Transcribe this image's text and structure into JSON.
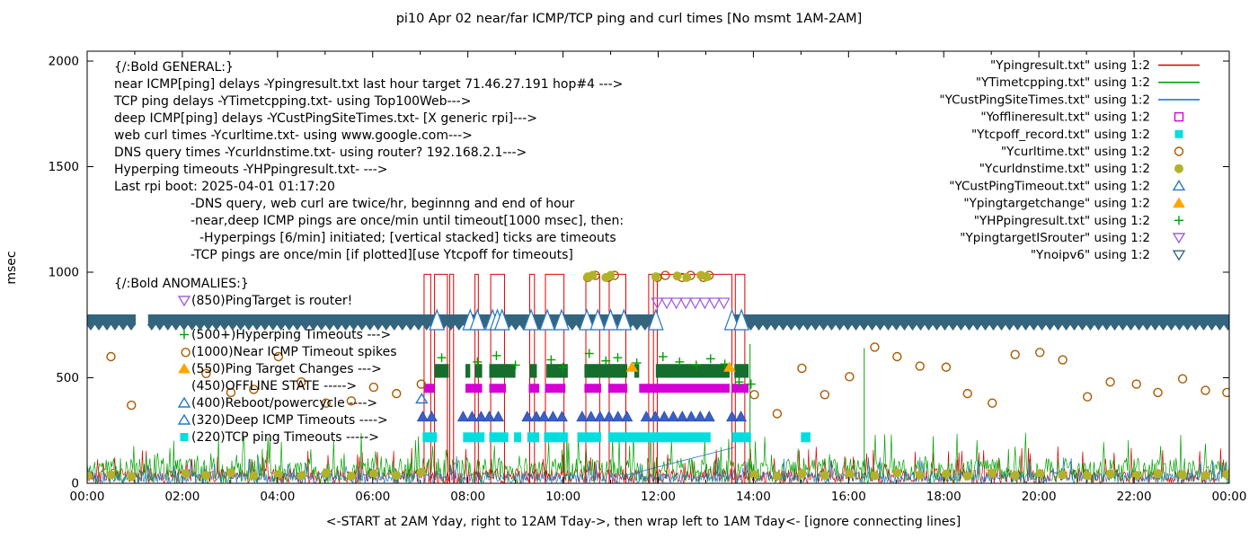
{
  "title": "pi10 Apr 02  near/far ICMP/TCP ping and curl times [No msmt 1AM-2AM]",
  "footer": "<-START at 2AM Yday, right to 12AM Tday->, then wrap left to 1AM Tday<- [ignore connecting lines]",
  "ylabel": "msec",
  "axes": {
    "x_ticks": [
      "00:00",
      "02:00",
      "04:00",
      "06:00",
      "08:00",
      "10:00",
      "12:00",
      "14:00",
      "16:00",
      "18:00",
      "20:00",
      "22:00",
      "00:00"
    ],
    "y_ticks": [
      0,
      500,
      1000,
      1500,
      2000
    ],
    "xlim_hours": [
      0,
      24
    ],
    "ylim_msec": [
      0,
      2045
    ]
  },
  "colors": {
    "red": "#dd0000",
    "green": "#00a000",
    "blue": "#2878c8",
    "magenta": "#d400d4",
    "cyan": "#00dede",
    "orange_brown": "#a85a00",
    "olive": "#b2b22a",
    "navy_band": "#34657f",
    "violet": "#a060e0",
    "orange": "#ffa500",
    "royal": "#3a5fc8",
    "dark_green": "#156e2d"
  },
  "legend": [
    {
      "label": "\"Ypingresult.txt\" using 1:2",
      "marker": "line",
      "color": "#dd0000"
    },
    {
      "label": "\"YTimetcpping.txt\" using 1:2",
      "marker": "line",
      "color": "#00a000"
    },
    {
      "label": "\"YCustPingSiteTimes.txt\" using 1:2",
      "marker": "line",
      "color": "#2878c8"
    },
    {
      "label": "\"Yofflineresult.txt\" using 1:2",
      "marker": "square-open",
      "color": "#d400d4"
    },
    {
      "label": "\"Ytcpoff_record.txt\" using 1:2",
      "marker": "square-filled",
      "color": "#00dede"
    },
    {
      "label": "\"Ycurltime.txt\" using 1:2",
      "marker": "circle-open",
      "color": "#a85a00"
    },
    {
      "label": "\"Ycurldnstime.txt\" using 1:2",
      "marker": "circle-filled",
      "color": "#b2b22a"
    },
    {
      "label": "\"YCustPingTimeout.txt\" using 1:2",
      "marker": "triangle-up-open",
      "color": "#2878c8"
    },
    {
      "label": "\"Ypingtargetchange\" using 1:2",
      "marker": "triangle-up-filled",
      "color": "#ffa500"
    },
    {
      "label": "\"YHPpingresult.txt\" using 1:2",
      "marker": "plus",
      "color": "#00a000"
    },
    {
      "label": "\"YpingtargetISrouter\" using 1:2",
      "marker": "triangle-down-open",
      "color": "#a060e0"
    },
    {
      "label": "\"Ynoipv6\" using 1:2",
      "marker": "triangle-down-open",
      "color": "#34657f"
    }
  ],
  "annotations": {
    "general": [
      {
        "text": "{/:Bold GENERAL:}",
        "indent": 0
      },
      {
        "text": "near ICMP[ping] delays -Ypingresult.txt last hour target 71.46.27.191 hop#4 --->",
        "indent": 0
      },
      {
        "text": "TCP ping delays -YTimetcpping.txt- using Top100Web--->",
        "indent": 0
      },
      {
        "text": "deep ICMP[ping] delays -YCustPingSiteTimes.txt- [X generic rpi]--->",
        "indent": 0
      },
      {
        "text": "web curl times -Ycurltime.txt- using www.google.com--->",
        "indent": 0
      },
      {
        "text": "DNS query times -Ycurldnstime.txt- using router? 192.168.2.1--->",
        "indent": 0
      },
      {
        "text": "Hyperping timeouts -YHPpingresult.txt- --->",
        "indent": 0
      },
      {
        "text": "Last rpi boot: 2025-04-01 01:17:20",
        "indent": 0
      },
      {
        "text": "-DNS query, web curl are twice/hr, beginnng and end of hour",
        "indent": 85
      },
      {
        "text": "-near,deep ICMP pings are once/min until timeout[1000 msec], then:",
        "indent": 85
      },
      {
        "text": "-Hyperpings [6/min] initiated; [vertical stacked] ticks are timeouts",
        "indent": 95
      },
      {
        "text": "-TCP pings are once/min [if plotted][use Ytcpoff for timeouts]",
        "indent": 85
      }
    ],
    "anomalies": [
      {
        "text": "{/:Bold ANOMALIES:}",
        "marker": null,
        "color": null,
        "header": true
      },
      {
        "text": "(850)PingTarget is router!",
        "marker": "triangle-down-open",
        "color": "#a060e0"
      },
      {
        "text": "",
        "marker": null,
        "color": null
      },
      {
        "text": "(500+)Hyperping Timeouts --->",
        "marker": "plus",
        "color": "#00a000"
      },
      {
        "text": "(1000)Near ICMP Timeout spikes",
        "marker": null,
        "color": null
      },
      {
        "text": "(550)Ping Target Changes --->",
        "marker": "triangle-up-filled",
        "color": "#ffa500"
      },
      {
        "text": "(450)OFFLINE STATE ----->",
        "marker": null,
        "color": null
      },
      {
        "text": "(400)Reboot/powercycle ---->",
        "marker": "triangle-up-open",
        "color": "#2878c8"
      },
      {
        "text": "(320)Deep ICMP Timeouts ---->",
        "marker": "triangle-up-open",
        "color": "#2878c8"
      },
      {
        "text": "(220)TCP ping Timeouts ----->",
        "marker": "square-filled",
        "color": "#00dede"
      }
    ]
  },
  "chart_data": {
    "type": "line",
    "title": "pi10 Apr 02  near/far ICMP/TCP ping and curl times [No msmt 1AM-2AM]",
    "xlabel": "<-START at 2AM Yday, right to 12AM Tday->, then wrap left to 1AM Tday<- [ignore connecting lines]",
    "ylabel": "msec",
    "ylim": [
      0,
      2045
    ],
    "xlim_hours": [
      0,
      24
    ],
    "red_timeout_boxes": {
      "top_msec": 990,
      "intervals": [
        [
          7.08,
          7.22
        ],
        [
          7.3,
          7.57
        ],
        [
          7.62,
          7.7
        ],
        [
          8.15,
          8.22
        ],
        [
          8.48,
          8.77
        ],
        [
          9.3,
          9.4
        ],
        [
          9.63,
          10.02
        ],
        [
          10.48,
          10.77
        ],
        [
          10.97,
          11.32
        ],
        [
          11.8,
          11.9
        ],
        [
          11.98,
          13.55
        ],
        [
          13.62,
          13.82
        ]
      ]
    },
    "noipv6_band": {
      "y_msec": 770,
      "intervals": [
        [
          0,
          1.02
        ],
        [
          1.28,
          11.98
        ],
        [
          13.53,
          24
        ]
      ]
    },
    "custping_timeout_markers": {
      "y_msec": 790,
      "x_hours": [
        7.35,
        8.05,
        8.2,
        8.52,
        8.62,
        8.72,
        9.33,
        9.67,
        9.97,
        10.5,
        10.73,
        11.0,
        11.28,
        11.95,
        13.55,
        13.75
      ]
    },
    "hyperping_blocks": {
      "y_range_msec": [
        500,
        565
      ],
      "intervals": [
        [
          7.3,
          7.6
        ],
        [
          7.95,
          8.05
        ],
        [
          8.15,
          8.3
        ],
        [
          8.45,
          9.0
        ],
        [
          9.3,
          9.45
        ],
        [
          9.65,
          10.1
        ],
        [
          10.45,
          11.35
        ],
        [
          11.5,
          11.6
        ],
        [
          11.95,
          13.5
        ],
        [
          13.6,
          13.9
        ]
      ]
    },
    "hyperping_plus_points": [
      [
        7.45,
        595
      ],
      [
        8.2,
        575
      ],
      [
        8.6,
        605
      ],
      [
        9.0,
        560
      ],
      [
        9.75,
        585
      ],
      [
        10.0,
        550
      ],
      [
        10.55,
        615
      ],
      [
        10.9,
        580
      ],
      [
        11.15,
        595
      ],
      [
        11.55,
        570
      ],
      [
        12.1,
        600
      ],
      [
        12.45,
        575
      ],
      [
        12.8,
        560
      ],
      [
        13.1,
        590
      ],
      [
        13.4,
        565
      ],
      [
        13.7,
        480
      ],
      [
        13.95,
        470
      ]
    ],
    "offline_bars": {
      "y_msec": 450,
      "intervals": [
        [
          7.08,
          7.3
        ],
        [
          7.95,
          8.3
        ],
        [
          8.45,
          8.8
        ],
        [
          9.28,
          9.5
        ],
        [
          9.62,
          10.05
        ],
        [
          10.45,
          10.8
        ],
        [
          10.95,
          11.35
        ],
        [
          11.6,
          13.5
        ],
        [
          13.55,
          13.9
        ]
      ]
    },
    "deep_timeout_triangles": {
      "y_msec": 320,
      "intervals": [
        [
          7.05,
          7.35
        ],
        [
          7.9,
          8.3
        ],
        [
          8.45,
          8.8
        ],
        [
          9.25,
          9.5
        ],
        [
          9.6,
          10.05
        ],
        [
          10.4,
          11.35
        ],
        [
          11.75,
          13.1
        ],
        [
          13.55,
          13.9
        ]
      ]
    },
    "tcp_timeout_bars": {
      "y_msec": 220,
      "intervals": [
        [
          7.05,
          7.35
        ],
        [
          7.9,
          8.35
        ],
        [
          8.45,
          8.85
        ],
        [
          8.97,
          9.12
        ],
        [
          9.25,
          9.5
        ],
        [
          9.6,
          10.1
        ],
        [
          10.3,
          10.8
        ],
        [
          10.95,
          13.1
        ],
        [
          13.55,
          13.95
        ],
        [
          15.0,
          15.2
        ]
      ]
    },
    "curl_points": [
      [
        0.5,
        600
      ],
      [
        0.93,
        370
      ],
      [
        2.07,
        620
      ],
      [
        2.5,
        520
      ],
      [
        3.02,
        430
      ],
      [
        3.5,
        445
      ],
      [
        4.02,
        600
      ],
      [
        4.5,
        480
      ],
      [
        5.02,
        380
      ],
      [
        5.55,
        390
      ],
      [
        6.02,
        455
      ],
      [
        6.5,
        425
      ],
      [
        7.02,
        470
      ],
      [
        10.52,
        975
      ],
      [
        10.68,
        985
      ],
      [
        10.95,
        975
      ],
      [
        11.08,
        985
      ],
      [
        11.98,
        975
      ],
      [
        12.15,
        985
      ],
      [
        12.5,
        975
      ],
      [
        12.68,
        985
      ],
      [
        12.95,
        975
      ],
      [
        13.07,
        985
      ],
      [
        14.02,
        420
      ],
      [
        14.5,
        330
      ],
      [
        15.02,
        545
      ],
      [
        15.5,
        420
      ],
      [
        16.02,
        505
      ],
      [
        16.55,
        645
      ],
      [
        17.02,
        600
      ],
      [
        17.5,
        555
      ],
      [
        18.05,
        550
      ],
      [
        18.5,
        425
      ],
      [
        19.02,
        380
      ],
      [
        19.5,
        610
      ],
      [
        20.02,
        620
      ],
      [
        20.5,
        585
      ],
      [
        21.02,
        410
      ],
      [
        21.5,
        480
      ],
      [
        22.05,
        470
      ],
      [
        22.5,
        430
      ],
      [
        23.02,
        495
      ],
      [
        23.5,
        440
      ],
      [
        23.95,
        430
      ]
    ],
    "dns_points": [
      [
        0.02,
        35
      ],
      [
        0.5,
        40
      ],
      [
        0.93,
        32
      ],
      [
        2.07,
        45
      ],
      [
        2.5,
        38
      ],
      [
        3.02,
        50
      ],
      [
        3.5,
        35
      ],
      [
        4.02,
        42
      ],
      [
        4.5,
        36
      ],
      [
        5.02,
        48
      ],
      [
        5.55,
        34
      ],
      [
        6.02,
        44
      ],
      [
        6.5,
        38
      ],
      [
        7.02,
        52
      ],
      [
        10.52,
        978
      ],
      [
        10.62,
        985
      ],
      [
        10.9,
        975
      ],
      [
        11.0,
        985
      ],
      [
        11.95,
        978
      ],
      [
        12.4,
        982
      ],
      [
        12.6,
        975
      ],
      [
        12.9,
        985
      ],
      [
        13.02,
        978
      ],
      [
        14.02,
        40
      ],
      [
        14.5,
        34
      ],
      [
        15.02,
        46
      ],
      [
        15.5,
        38
      ],
      [
        16.02,
        44
      ],
      [
        16.55,
        36
      ],
      [
        17.02,
        50
      ],
      [
        17.5,
        40
      ],
      [
        18.05,
        44
      ],
      [
        18.5,
        34
      ],
      [
        19.02,
        48
      ],
      [
        19.5,
        38
      ],
      [
        20.02,
        46
      ],
      [
        20.5,
        40
      ],
      [
        21.02,
        36
      ],
      [
        21.5,
        44
      ],
      [
        22.05,
        38
      ],
      [
        22.5,
        46
      ],
      [
        23.02,
        40
      ],
      [
        23.5,
        36
      ],
      [
        23.95,
        42
      ]
    ],
    "target_change_triangles": {
      "y_msec": 550,
      "x_hours": [
        11.45,
        13.5
      ]
    },
    "router_target_triangles": {
      "y_msec": 850,
      "x_hours": [
        11.98,
        12.18,
        12.38,
        12.58,
        12.78,
        12.98,
        13.18,
        13.38
      ]
    },
    "reboot_triangles": {
      "y_msec": 400,
      "x_hours": [
        7.03
      ]
    },
    "tcp_green_spikes": [
      [
        13.93,
        660
      ],
      [
        16.33,
        640
      ]
    ],
    "deep_connector_line": [
      [
        11.35,
        40
      ],
      [
        13.6,
        170
      ]
    ],
    "baseline_noise": {
      "seed": 42,
      "step_hours": 0.02,
      "series": [
        {
          "name": "Ypingresult near ICMP",
          "color_key": "red",
          "max_msec": 70,
          "spike_chance": 0.05,
          "spike_max_msec": 180
        },
        {
          "name": "YTimetcpping TCP ping",
          "color_key": "green",
          "max_msec": 120,
          "spike_chance": 0.06,
          "spike_max_msec": 240
        },
        {
          "name": "YCustPingSiteTimes deep ICMP",
          "color_key": "blue",
          "max_msec": 55,
          "spike_chance": 0.03,
          "spike_max_msec": 130
        }
      ]
    }
  }
}
